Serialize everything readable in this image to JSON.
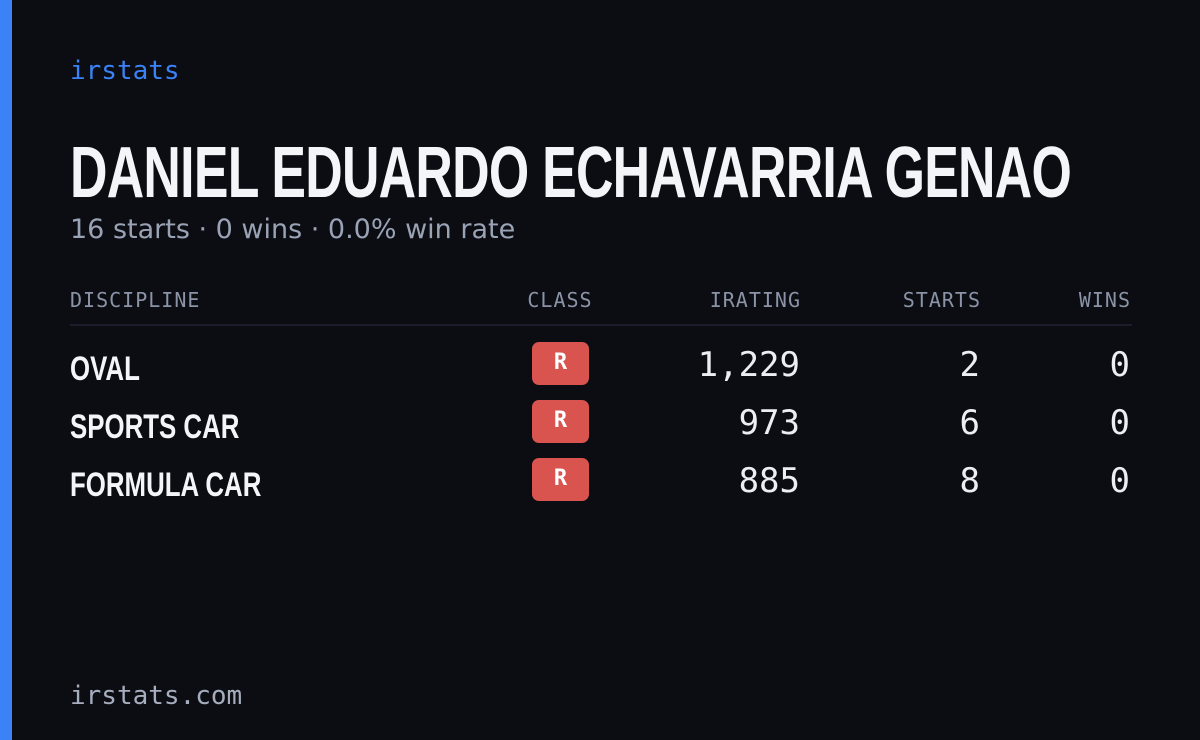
{
  "brand": "irstats",
  "header": {
    "title": "DANIEL EDUARDO ECHAVARRIA GENAO",
    "subtitle": "16 starts · 0 wins · 0.0% win rate"
  },
  "table": {
    "headers": [
      "DISCIPLINE",
      "CLASS",
      "IRATING",
      "STARTS",
      "WINS"
    ],
    "rows": [
      [
        "OVAL",
        "R",
        "1,229",
        "2",
        "0"
      ],
      [
        "SPORTS CAR",
        "R",
        "973",
        "6",
        "0"
      ],
      [
        "FORMULA CAR",
        "R",
        "885",
        "8",
        "0"
      ]
    ]
  },
  "footer": "irstats.com"
}
